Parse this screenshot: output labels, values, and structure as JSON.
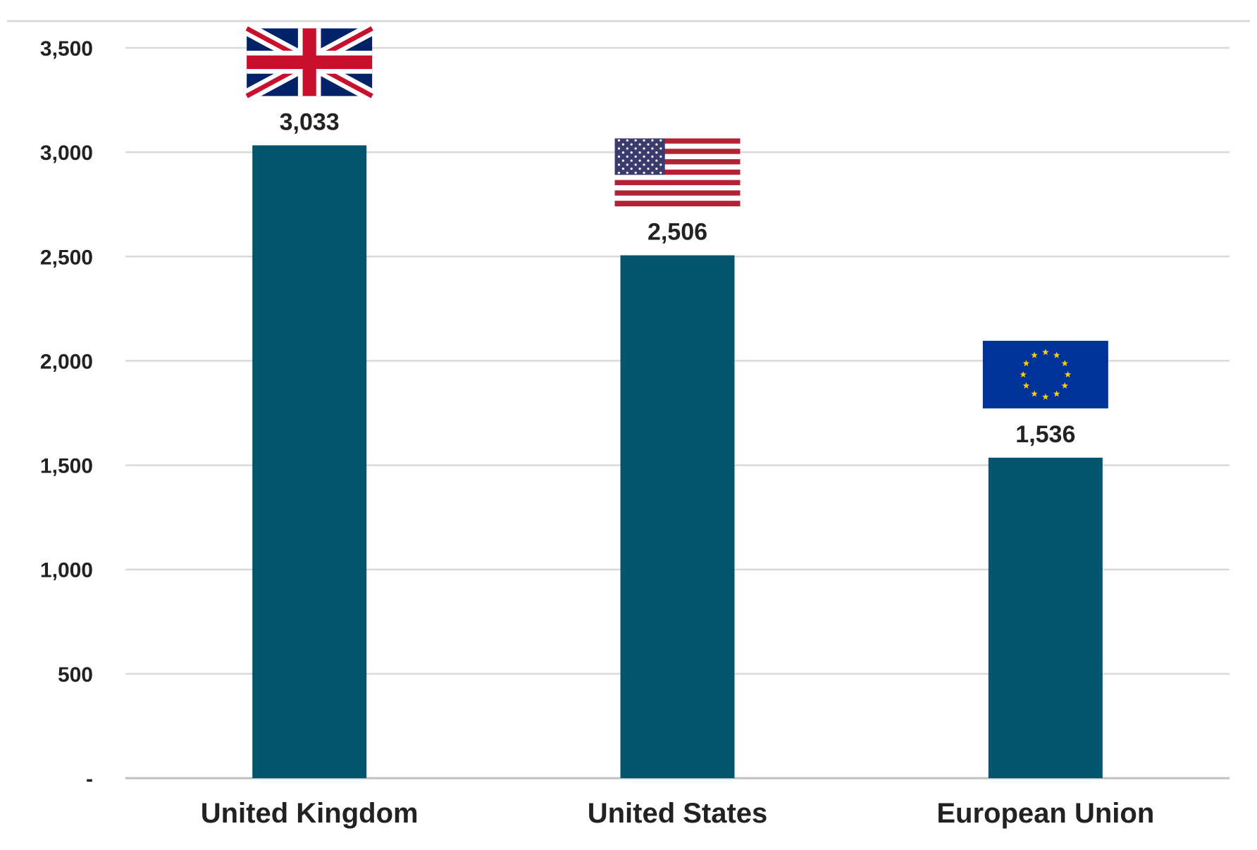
{
  "chart_data": {
    "type": "bar",
    "categories": [
      "United Kingdom",
      "United States",
      "European Union"
    ],
    "values": [
      3033,
      2506,
      1536
    ],
    "data_labels": [
      "3,033",
      "2,506",
      "1,536"
    ],
    "flags": [
      "uk-flag-icon",
      "us-flag-icon",
      "eu-flag-icon"
    ],
    "title": "",
    "xlabel": "",
    "ylabel": "",
    "ylim": [
      0,
      3500
    ],
    "yticks": [
      0,
      500,
      1000,
      1500,
      2000,
      2500,
      3000,
      3500
    ],
    "ytick_labels": [
      "-",
      "500",
      "1,000",
      "1,500",
      "2,000",
      "2,500",
      "3,000",
      "3,500"
    ],
    "grid": true,
    "legend": "none",
    "colors": {
      "bar": "#04566f",
      "grid": "#d9d9d9",
      "text": "#222222",
      "uk_blue": "#012169",
      "uk_red": "#c8102e",
      "us_blue": "#3c3b6e",
      "us_red": "#b22234",
      "eu_blue": "#003399",
      "eu_gold": "#ffcc00"
    }
  }
}
